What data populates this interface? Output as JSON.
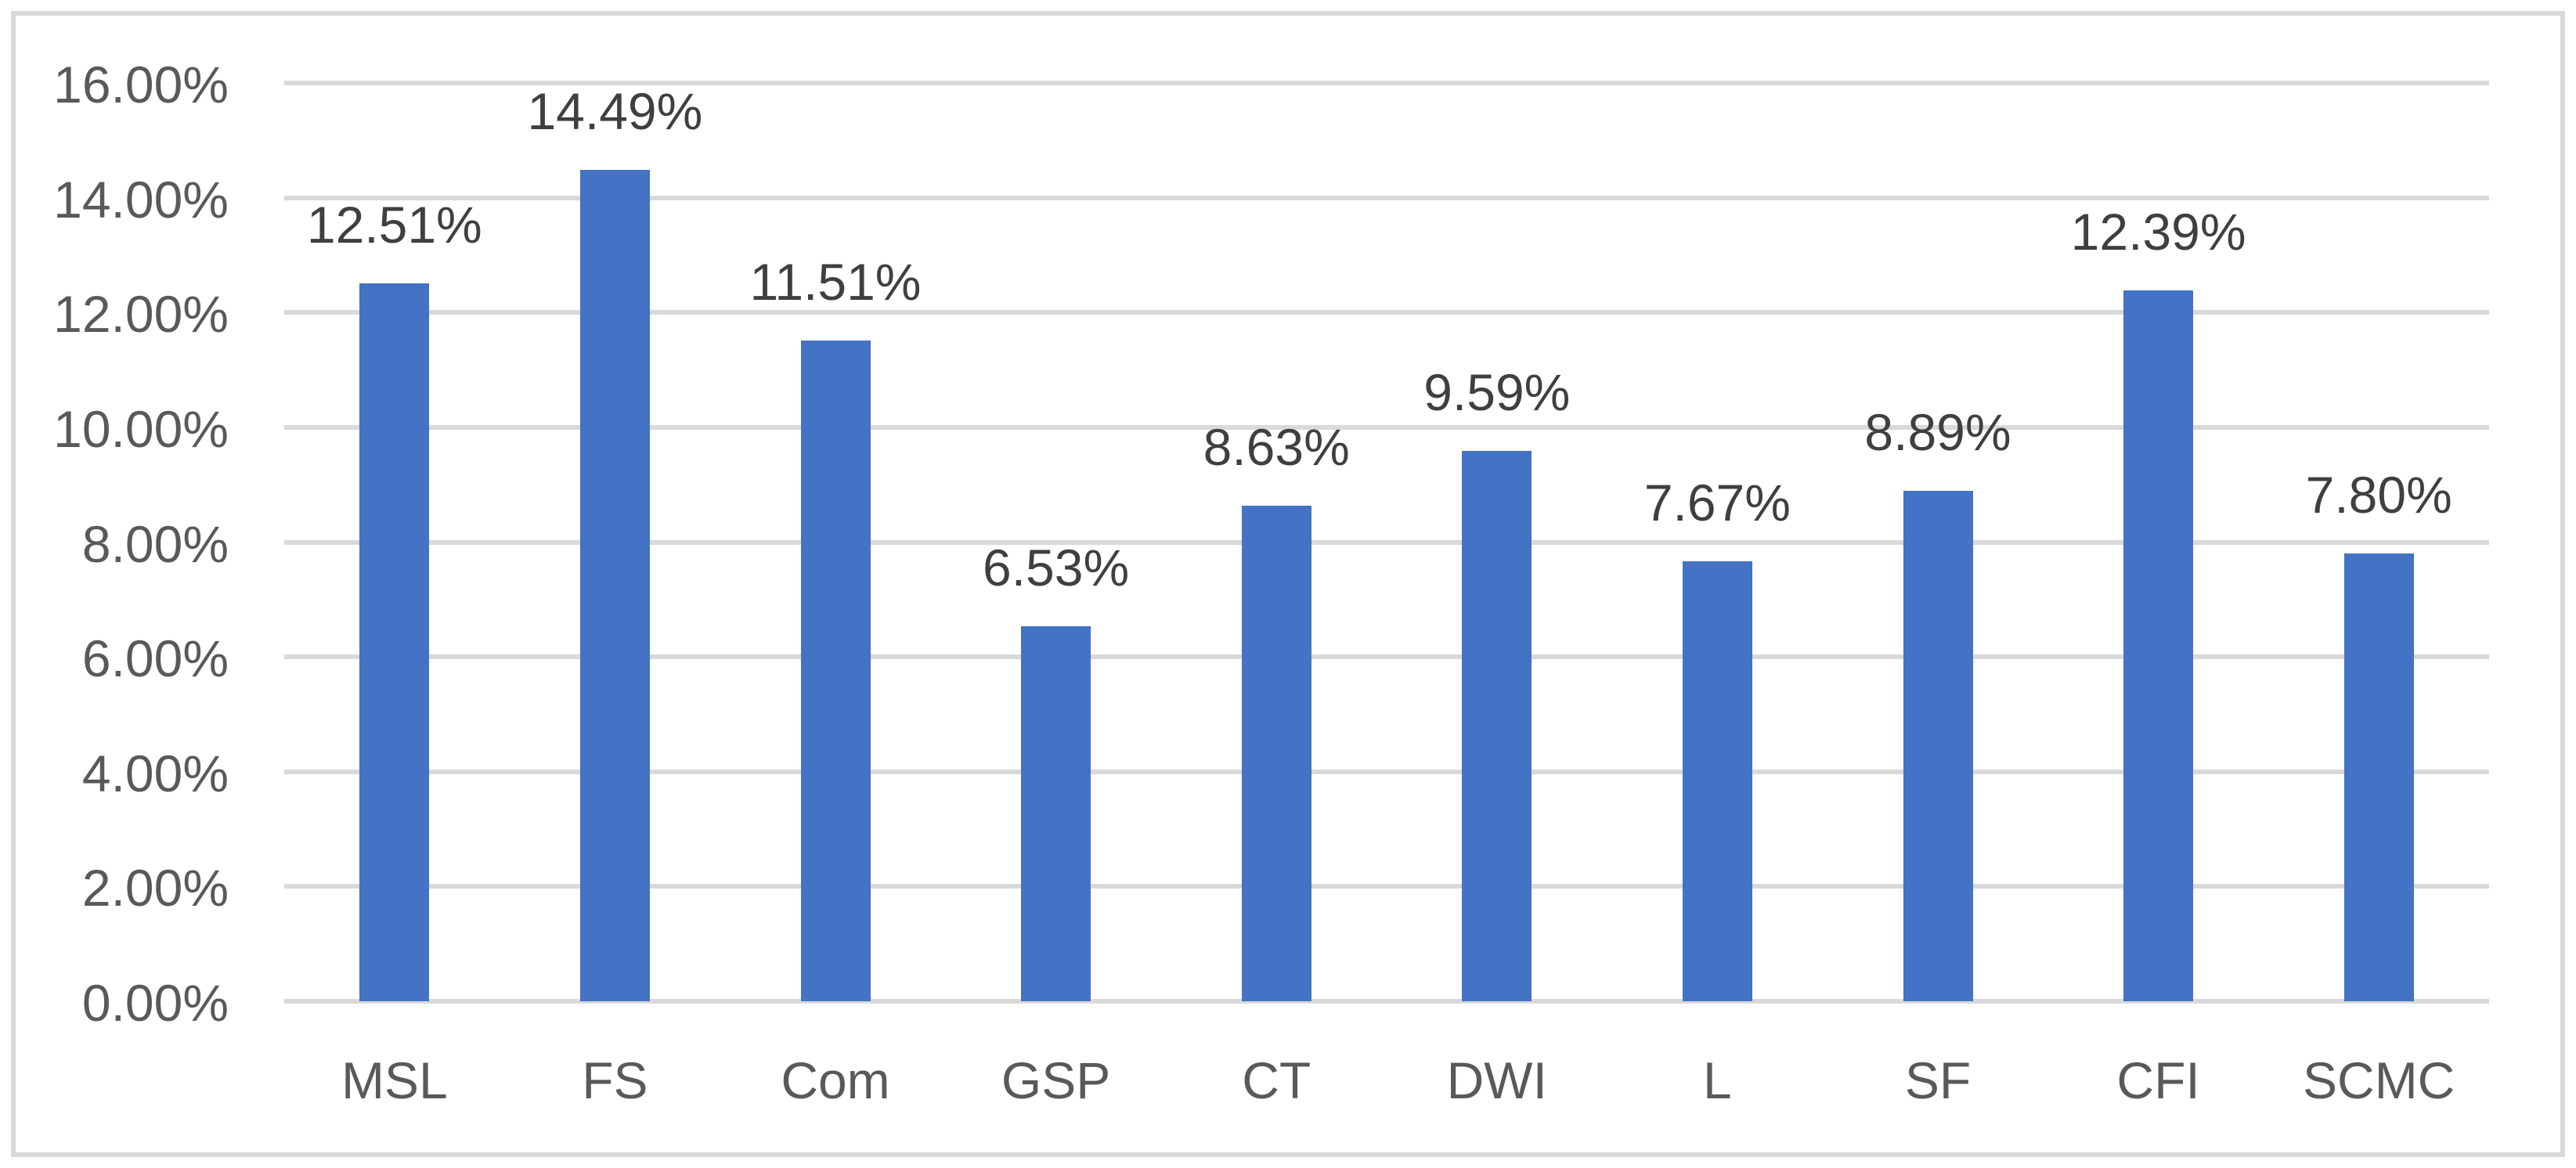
{
  "chart_data": {
    "type": "bar",
    "title": "",
    "xlabel": "",
    "ylabel": "",
    "categories": [
      "MSL",
      "FS",
      "Com",
      "GSP",
      "CT",
      "DWI",
      "L",
      "SF",
      "CFI",
      "SCMC"
    ],
    "values": [
      12.51,
      14.49,
      11.51,
      6.53,
      8.63,
      9.59,
      7.67,
      8.89,
      12.39,
      7.8
    ],
    "data_labels": [
      "12.51%",
      "14.49%",
      "11.51%",
      "6.53%",
      "8.63%",
      "9.59%",
      "7.67%",
      "8.89%",
      "12.39%",
      "7.80%"
    ],
    "y_tick_labels": [
      "0.00%",
      "2.00%",
      "4.00%",
      "6.00%",
      "8.00%",
      "10.00%",
      "12.00%",
      "14.00%",
      "16.00%"
    ],
    "y_tick_values": [
      0,
      2,
      4,
      6,
      8,
      10,
      12,
      14,
      16
    ],
    "ylim": [
      0,
      16
    ],
    "grid": "horizontal",
    "legend": "none",
    "colors": {
      "bar": "#4472C4",
      "gridline": "#D9D9D9",
      "axis_text": "#595959",
      "data_label_text": "#3F3F3F",
      "chart_border": "#D9D9D9",
      "background": "#FFFFFF"
    }
  }
}
